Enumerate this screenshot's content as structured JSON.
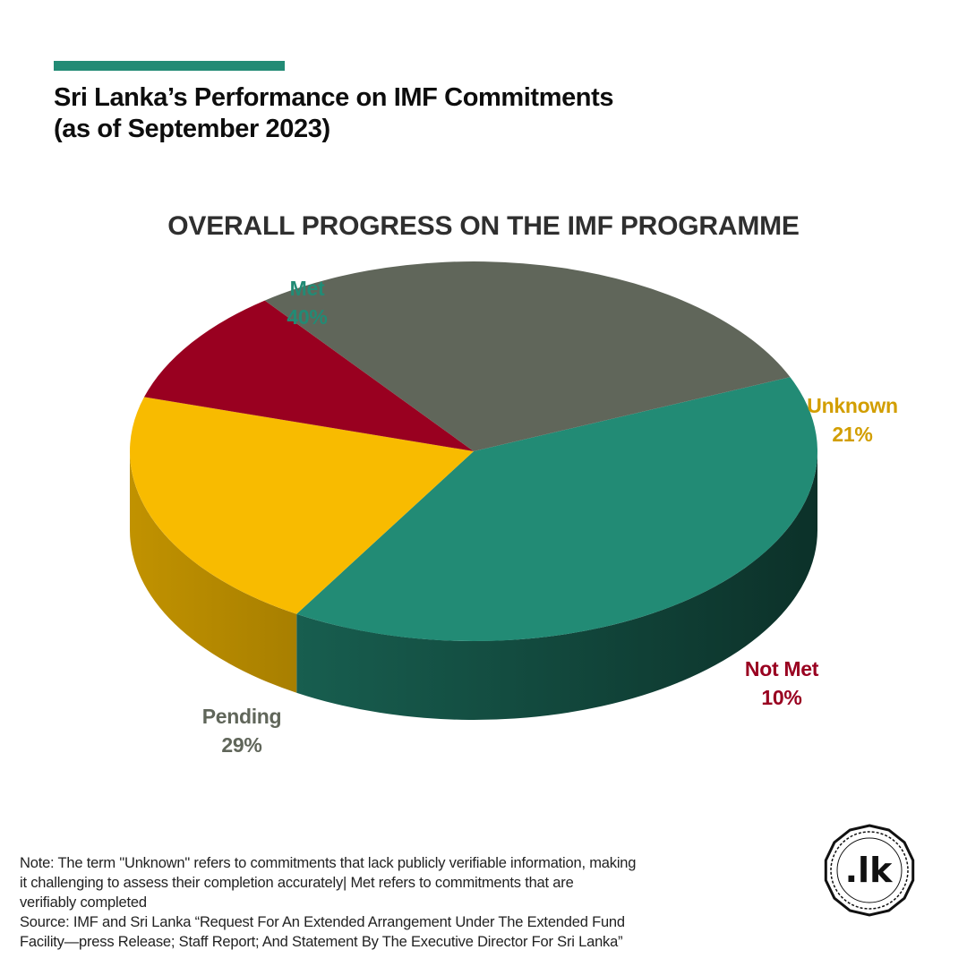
{
  "header": {
    "title_line1": "Sri Lanka’s Performance on IMF Commitments",
    "title_line2": "(as of September 2023)",
    "accent_color": "#228b75"
  },
  "chart_data": {
    "type": "pie",
    "title": "OVERALL PROGRESS ON THE IMF PROGRAMME",
    "slices": [
      {
        "label": "Met",
        "value": 40,
        "value_label": "40%",
        "color": "#228b75",
        "label_color": "#228b75"
      },
      {
        "label": "Unknown",
        "value": 21,
        "value_label": "21%",
        "color": "#f8bb00",
        "label_color": "#d29e00"
      },
      {
        "label": "Not Met",
        "value": 10,
        "value_label": "10%",
        "color": "#990020",
        "label_color": "#990020"
      },
      {
        "label": "Pending",
        "value": 29,
        "value_label": "29%",
        "color": "#60665a",
        "label_color": "#60665a"
      }
    ],
    "style": "3d-tilted"
  },
  "footer": {
    "note_lines": [
      "Note: The term \"Unknown\" refers to commitments that lack publicly verifiable information, making",
      "it challenging to assess their completion accurately| Met refers to commitments that are",
      "verifiably completed",
      "Source: IMF and Sri Lanka “Request For An Extended Arrangement Under The Extended Fund",
      "Facility—press Release; Staff Report; And Statement By The Executive Director For Sri Lanka”"
    ],
    "logo_text": ".lk"
  }
}
